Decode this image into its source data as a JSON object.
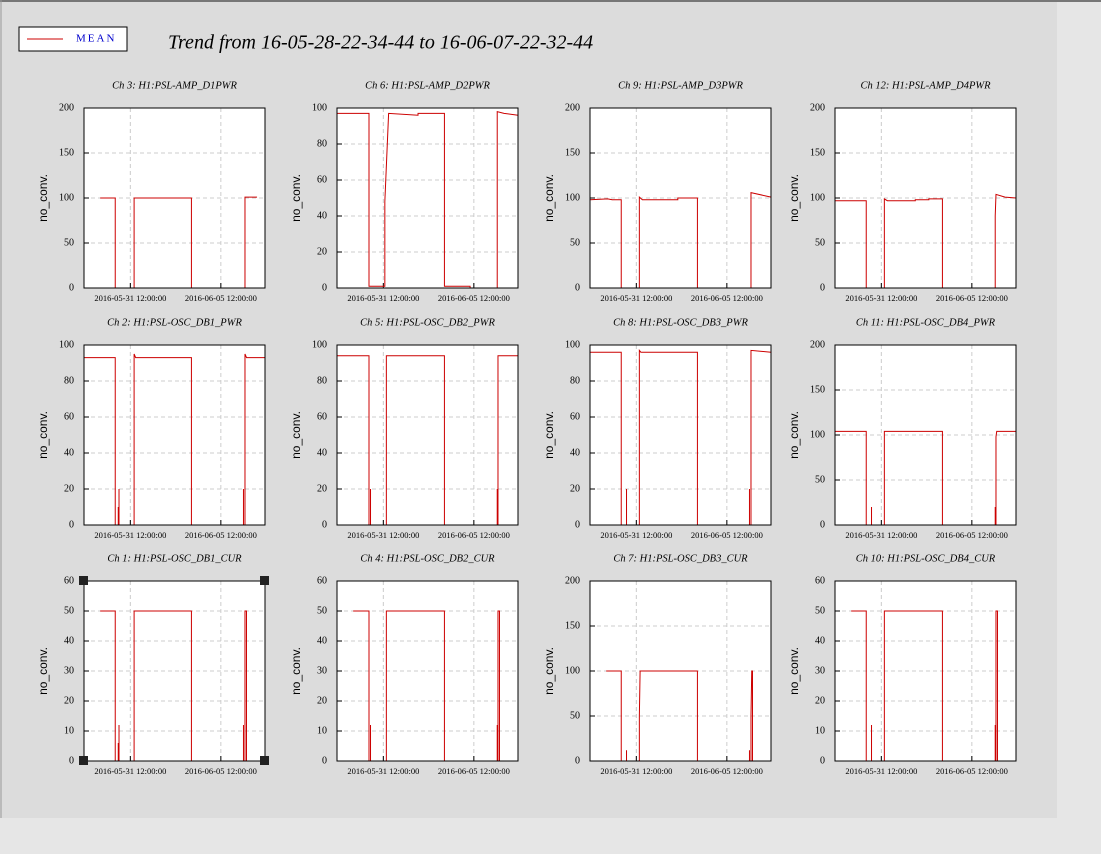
{
  "title": "Trend from 16-05-28-22-34-44 to 16-06-07-22-32-44",
  "legend": {
    "label": "MEAN",
    "color": "#cc0000"
  },
  "chart_data": [
    {
      "type": "line",
      "title": "Ch 3: H1:PSL-AMP_D1PWR",
      "ylabel": "no_conv.",
      "color": "#cc0000",
      "grid": true,
      "xlim": [
        "2016-05-28 22:34:44",
        "2016-06-07 22:32:44"
      ],
      "xticks": [
        "2016-05-31 12:00:00",
        "2016-06-05 12:00:00"
      ],
      "ylim": [
        0,
        200
      ],
      "yticks": [
        0,
        50,
        100,
        150,
        200
      ],
      "x": [
        "2016-05-29 20:00:00",
        "2016-05-30 16:00:00",
        "2016-05-30 16:00:00",
        "2016-05-31 17:00:00",
        "2016-05-31 17:00:00",
        "2016-06-03 21:00:00",
        "2016-06-03 21:00:00",
        "2016-06-06 20:00:00",
        "2016-06-06 20:00:00",
        "2016-06-07 12:00:00"
      ],
      "values": [
        100,
        100,
        0,
        0,
        100,
        100,
        0,
        0,
        101,
        101
      ]
    },
    {
      "type": "line",
      "title": "Ch 6: H1:PSL-AMP_D2PWR",
      "ylabel": "no_conv.",
      "color": "#cc0000",
      "grid": true,
      "xlim": [
        "2016-05-28 22:34:44",
        "2016-06-07 22:32:44"
      ],
      "xticks": [
        "2016-05-31 12:00:00",
        "2016-06-05 12:00:00"
      ],
      "ylim": [
        0,
        100
      ],
      "yticks": [
        0,
        20,
        40,
        60,
        80,
        100
      ],
      "x": [
        "2016-05-28 22:34:44",
        "2016-05-30 17:00:00",
        "2016-05-30 17:00:00",
        "2016-05-31 14:00:00",
        "2016-05-31 14:00:00",
        "2016-05-31 19:00:00",
        "2016-06-02 10:00:00",
        "2016-06-02 10:00:00",
        "2016-06-03 21:00:00",
        "2016-06-03 21:00:00",
        "2016-06-05 07:00:00",
        "2016-06-05 07:00:00",
        "2016-06-06 19:00:00",
        "2016-06-06 19:00:00",
        "2016-06-07 04:00:00",
        "2016-06-07 22:32:44"
      ],
      "values": [
        97,
        97,
        1,
        1,
        48,
        97,
        96,
        97,
        97,
        1,
        1,
        0,
        0,
        98,
        97,
        96
      ]
    },
    {
      "type": "line",
      "title": "Ch 9: H1:PSL-AMP_D3PWR",
      "ylabel": "no_conv.",
      "color": "#cc0000",
      "grid": true,
      "xlim": [
        "2016-05-28 22:34:44",
        "2016-06-07 22:32:44"
      ],
      "xticks": [
        "2016-05-31 12:00:00",
        "2016-06-05 12:00:00"
      ],
      "ylim": [
        0,
        200
      ],
      "yticks": [
        0,
        50,
        100,
        150,
        200
      ],
      "x": [
        "2016-05-28 22:34:44",
        "2016-05-29 22:00:00",
        "2016-05-30 04:00:00",
        "2016-05-30 16:00:00",
        "2016-05-30 16:00:00",
        "2016-05-31 16:00:00",
        "2016-05-31 16:00:00",
        "2016-05-31 20:00:00",
        "2016-06-02 19:00:00",
        "2016-06-02 19:00:00",
        "2016-06-03 21:00:00",
        "2016-06-03 21:00:00",
        "2016-06-06 20:00:00",
        "2016-06-06 20:00:00",
        "2016-06-07 22:32:44"
      ],
      "values": [
        98,
        99,
        98,
        98,
        0,
        0,
        101,
        98,
        98,
        100,
        100,
        0,
        0,
        106,
        101
      ]
    },
    {
      "type": "line",
      "title": "Ch 12: H1:PSL-AMP_D4PWR",
      "ylabel": "no_conv.",
      "color": "#cc0000",
      "grid": true,
      "xlim": [
        "2016-05-28 22:34:44",
        "2016-06-07 22:32:44"
      ],
      "xticks": [
        "2016-05-31 12:00:00",
        "2016-06-05 12:00:00"
      ],
      "ylim": [
        0,
        200
      ],
      "yticks": [
        0,
        50,
        100,
        150,
        200
      ],
      "x": [
        "2016-05-28 22:34:44",
        "2016-05-30 16:00:00",
        "2016-05-30 16:00:00",
        "2016-05-31 16:00:00",
        "2016-05-31 16:00:00",
        "2016-05-31 20:00:00",
        "2016-06-02 09:00:00",
        "2016-06-02 09:00:00",
        "2016-06-03 03:00:00",
        "2016-06-03 03:00:00",
        "2016-06-03 21:00:00",
        "2016-06-03 21:00:00",
        "2016-06-06 19:00:00",
        "2016-06-06 19:00:00",
        "2016-06-06 20:00:00",
        "2016-06-07 08:00:00",
        "2016-06-07 22:32:44"
      ],
      "values": [
        97,
        97,
        0,
        0,
        99,
        97,
        97,
        98,
        98,
        99,
        99,
        0,
        0,
        80,
        104,
        101,
        100
      ]
    },
    {
      "type": "line",
      "title": "Ch 2: H1:PSL-OSC_DB1_PWR",
      "ylabel": "no_conv.",
      "color": "#cc0000",
      "grid": true,
      "xlim": [
        "2016-05-28 22:34:44",
        "2016-06-07 22:32:44"
      ],
      "xticks": [
        "2016-05-31 12:00:00",
        "2016-06-05 12:00:00"
      ],
      "ylim": [
        0,
        100
      ],
      "yticks": [
        0,
        20,
        40,
        60,
        80,
        100
      ],
      "x": [
        "2016-05-28 22:34:44",
        "2016-05-30 16:00:00",
        "2016-05-30 16:00:00",
        "2016-05-30 20:00:00",
        "2016-05-30 20:00:00",
        "2016-05-30 20:00:00",
        "2016-05-30 21:00:00",
        "2016-05-30 21:00:00",
        "2016-05-30 21:00:00",
        "2016-05-31 17:00:00",
        "2016-05-31 17:00:00",
        "2016-05-31 19:00:00",
        "2016-06-03 21:00:00",
        "2016-06-03 21:00:00",
        "2016-06-06 18:00:00",
        "2016-06-06 18:00:00",
        "2016-06-06 18:00:00",
        "2016-06-06 20:00:00",
        "2016-06-06 20:00:00",
        "2016-06-06 22:00:00",
        "2016-06-07 22:32:44"
      ],
      "values": [
        93,
        93,
        0,
        0,
        10,
        0,
        0,
        20,
        0,
        0,
        95,
        93,
        93,
        0,
        0,
        20,
        0,
        0,
        95,
        93,
        93
      ]
    },
    {
      "type": "line",
      "title": "Ch 5: H1:PSL-OSC_DB2_PWR",
      "ylabel": "no_conv.",
      "color": "#cc0000",
      "grid": true,
      "xlim": [
        "2016-05-28 22:34:44",
        "2016-06-07 22:32:44"
      ],
      "xticks": [
        "2016-05-31 12:00:00",
        "2016-06-05 12:00:00"
      ],
      "ylim": [
        0,
        100
      ],
      "yticks": [
        0,
        20,
        40,
        60,
        80,
        100
      ],
      "x": [
        "2016-05-28 22:34:44",
        "2016-05-30 17:00:00",
        "2016-05-30 17:00:00",
        "2016-05-30 19:00:00",
        "2016-05-30 19:00:00",
        "2016-05-30 19:00:00",
        "2016-05-31 16:00:00",
        "2016-05-31 16:00:00",
        "2016-06-03 21:00:00",
        "2016-06-03 21:00:00",
        "2016-06-06 19:00:00",
        "2016-06-06 19:00:00",
        "2016-06-06 19:00:00",
        "2016-06-06 20:00:00",
        "2016-06-06 20:00:00",
        "2016-06-07 22:32:44"
      ],
      "values": [
        94,
        94,
        0,
        0,
        20,
        0,
        0,
        94,
        94,
        0,
        0,
        20,
        0,
        0,
        94,
        94
      ]
    },
    {
      "type": "line",
      "title": "Ch 8: H1:PSL-OSC_DB3_PWR",
      "ylabel": "no_conv.",
      "color": "#cc0000",
      "grid": true,
      "xlim": [
        "2016-05-28 22:34:44",
        "2016-06-07 22:32:44"
      ],
      "xticks": [
        "2016-05-31 12:00:00",
        "2016-06-05 12:00:00"
      ],
      "ylim": [
        0,
        100
      ],
      "yticks": [
        0,
        20,
        40,
        60,
        80,
        100
      ],
      "x": [
        "2016-05-28 22:34:44",
        "2016-05-30 16:00:00",
        "2016-05-30 16:00:00",
        "2016-05-30 23:00:00",
        "2016-05-30 23:00:00",
        "2016-05-30 23:00:00",
        "2016-05-31 16:00:00",
        "2016-05-31 16:00:00",
        "2016-05-31 18:00:00",
        "2016-06-03 21:00:00",
        "2016-06-03 21:00:00",
        "2016-06-06 18:00:00",
        "2016-06-06 18:00:00",
        "2016-06-06 18:00:00",
        "2016-06-06 20:00:00",
        "2016-06-06 20:00:00",
        "2016-06-07 22:32:44"
      ],
      "values": [
        96,
        96,
        0,
        0,
        20,
        0,
        0,
        97,
        96,
        96,
        0,
        0,
        20,
        0,
        0,
        97,
        96
      ]
    },
    {
      "type": "line",
      "title": "Ch 11: H1:PSL-OSC_DB4_PWR",
      "ylabel": "no_conv.",
      "color": "#cc0000",
      "grid": true,
      "xlim": [
        "2016-05-28 22:34:44",
        "2016-06-07 22:32:44"
      ],
      "xticks": [
        "2016-05-31 12:00:00",
        "2016-06-05 12:00:00"
      ],
      "ylim": [
        0,
        200
      ],
      "yticks": [
        0,
        50,
        100,
        150,
        200
      ],
      "x": [
        "2016-05-28 22:34:44",
        "2016-05-30 16:00:00",
        "2016-05-30 16:00:00",
        "2016-05-30 23:00:00",
        "2016-05-30 23:00:00",
        "2016-05-30 23:00:00",
        "2016-05-31 16:00:00",
        "2016-05-31 16:00:00",
        "2016-06-03 21:00:00",
        "2016-06-03 21:00:00",
        "2016-06-06 19:00:00",
        "2016-06-06 19:00:00",
        "2016-06-06 19:00:00",
        "2016-06-06 20:00:00",
        "2016-06-06 20:00:00",
        "2016-06-06 21:00:00",
        "2016-06-07 22:32:44"
      ],
      "values": [
        104,
        104,
        0,
        0,
        20,
        0,
        0,
        104,
        104,
        0,
        0,
        20,
        0,
        0,
        98,
        104,
        104
      ]
    },
    {
      "type": "line",
      "title": "Ch 1: H1:PSL-OSC_DB1_CUR",
      "ylabel": "no_conv.",
      "color": "#cc0000",
      "grid": true,
      "xlim": [
        "2016-05-28 22:34:44",
        "2016-06-07 22:32:44"
      ],
      "xticks": [
        "2016-05-31 12:00:00",
        "2016-06-05 12:00:00"
      ],
      "ylim": [
        0,
        60
      ],
      "yticks": [
        0,
        10,
        20,
        30,
        40,
        50,
        60
      ],
      "x": [
        "2016-05-29 20:00:00",
        "2016-05-30 16:00:00",
        "2016-05-30 16:00:00",
        "2016-05-30 20:00:00",
        "2016-05-30 20:00:00",
        "2016-05-30 20:00:00",
        "2016-05-30 21:00:00",
        "2016-05-30 21:00:00",
        "2016-05-30 21:00:00",
        "2016-05-31 17:00:00",
        "2016-05-31 17:00:00",
        "2016-06-03 21:00:00",
        "2016-06-03 21:00:00",
        "2016-06-06 18:00:00",
        "2016-06-06 18:00:00",
        "2016-06-06 18:00:00",
        "2016-06-06 20:00:00",
        "2016-06-06 20:00:00",
        "2016-06-06 22:00:00",
        "2016-06-06 22:00:00"
      ],
      "values": [
        50,
        50,
        0,
        0,
        6,
        0,
        0,
        12,
        0,
        0,
        50,
        50,
        0,
        0,
        12,
        0,
        0,
        50,
        50,
        0
      ]
    },
    {
      "type": "line",
      "title": "Ch 4: H1:PSL-OSC_DB2_CUR",
      "ylabel": "no_conv.",
      "color": "#cc0000",
      "grid": true,
      "xlim": [
        "2016-05-28 22:34:44",
        "2016-06-07 22:32:44"
      ],
      "xticks": [
        "2016-05-31 12:00:00",
        "2016-06-05 12:00:00"
      ],
      "ylim": [
        0,
        60
      ],
      "yticks": [
        0,
        10,
        20,
        30,
        40,
        50,
        60
      ],
      "x": [
        "2016-05-29 20:00:00",
        "2016-05-30 17:00:00",
        "2016-05-30 17:00:00",
        "2016-05-30 19:00:00",
        "2016-05-30 19:00:00",
        "2016-05-30 19:00:00",
        "2016-05-31 16:00:00",
        "2016-05-31 16:00:00",
        "2016-06-03 21:00:00",
        "2016-06-03 21:00:00",
        "2016-06-06 19:00:00",
        "2016-06-06 19:00:00",
        "2016-06-06 19:00:00",
        "2016-06-06 20:00:00",
        "2016-06-06 20:00:00",
        "2016-06-06 22:00:00",
        "2016-06-06 22:00:00"
      ],
      "values": [
        50,
        50,
        0,
        0,
        12,
        0,
        0,
        50,
        50,
        0,
        0,
        12,
        0,
        0,
        50,
        50,
        0
      ]
    },
    {
      "type": "line",
      "title": "Ch 7: H1:PSL-OSC_DB3_CUR",
      "ylabel": "no_conv.",
      "color": "#cc0000",
      "grid": true,
      "xlim": [
        "2016-05-28 22:34:44",
        "2016-06-07 22:32:44"
      ],
      "xticks": [
        "2016-05-31 12:00:00",
        "2016-06-05 12:00:00"
      ],
      "ylim": [
        0,
        200
      ],
      "yticks": [
        0,
        50,
        100,
        150,
        200
      ],
      "x": [
        "2016-05-29 20:00:00",
        "2016-05-30 16:00:00",
        "2016-05-30 16:00:00",
        "2016-05-30 23:00:00",
        "2016-05-30 23:00:00",
        "2016-05-30 23:00:00",
        "2016-05-31 16:00:00",
        "2016-05-31 16:00:00",
        "2016-05-31 17:00:00",
        "2016-06-03 21:00:00",
        "2016-06-03 21:00:00",
        "2016-06-06 18:00:00",
        "2016-06-06 18:00:00",
        "2016-06-06 18:00:00",
        "2016-06-06 20:00:00",
        "2016-06-06 20:00:00",
        "2016-06-06 21:00:00",
        "2016-06-06 22:00:00",
        "2016-06-06 22:00:00"
      ],
      "values": [
        100,
        100,
        0,
        0,
        12,
        0,
        0,
        50,
        100,
        100,
        0,
        0,
        12,
        0,
        0,
        50,
        100,
        100,
        0
      ]
    },
    {
      "type": "line",
      "title": "Ch 10: H1:PSL-OSC_DB4_CUR",
      "ylabel": "no_conv.",
      "color": "#cc0000",
      "grid": true,
      "xlim": [
        "2016-05-28 22:34:44",
        "2016-06-07 22:32:44"
      ],
      "xticks": [
        "2016-05-31 12:00:00",
        "2016-06-05 12:00:00"
      ],
      "ylim": [
        0,
        60
      ],
      "yticks": [
        0,
        10,
        20,
        30,
        40,
        50,
        60
      ],
      "x": [
        "2016-05-29 20:00:00",
        "2016-05-30 16:00:00",
        "2016-05-30 16:00:00",
        "2016-05-30 23:00:00",
        "2016-05-30 23:00:00",
        "2016-05-30 23:00:00",
        "2016-05-31 16:00:00",
        "2016-05-31 16:00:00",
        "2016-06-03 21:00:00",
        "2016-06-03 21:00:00",
        "2016-06-06 19:00:00",
        "2016-06-06 19:00:00",
        "2016-06-06 19:00:00",
        "2016-06-06 20:00:00",
        "2016-06-06 20:00:00",
        "2016-06-06 22:00:00",
        "2016-06-06 22:00:00"
      ],
      "values": [
        50,
        50,
        0,
        0,
        12,
        0,
        0,
        50,
        50,
        0,
        0,
        12,
        0,
        0,
        50,
        50,
        0
      ]
    }
  ]
}
